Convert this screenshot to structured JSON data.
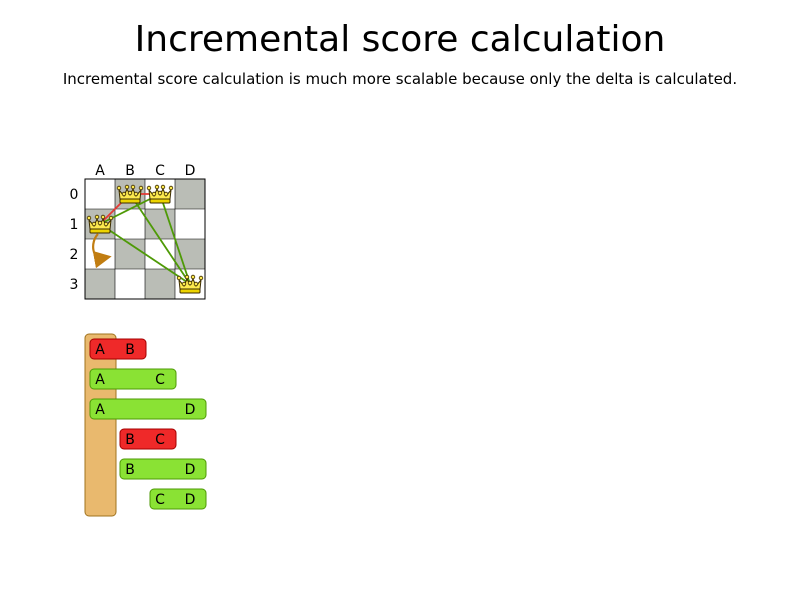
{
  "title": "Incremental score calculation",
  "subtitle": "Incremental score calculation is much more scalable because only the delta is calculated.",
  "board": {
    "columns": [
      "A",
      "B",
      "C",
      "D"
    ],
    "rows": [
      "0",
      "1",
      "2",
      "3"
    ],
    "queens": [
      {
        "column": "A",
        "row": 1
      },
      {
        "column": "B",
        "row": 0
      },
      {
        "column": "C",
        "row": 0
      },
      {
        "column": "D",
        "row": 3
      }
    ],
    "queen_icon": "crown-icon",
    "move_icon": "curved-arrow-icon",
    "move": {
      "column": "A",
      "from_row": 1,
      "to_row": 2
    },
    "conflict_color": "#e53935",
    "ok_color": "#4e9a06",
    "dark_cell_color": "#babdb6"
  },
  "pairs": [
    {
      "a": "A",
      "b": "B",
      "conflict": true
    },
    {
      "a": "A",
      "b": "C",
      "conflict": false
    },
    {
      "a": "A",
      "b": "D",
      "conflict": false
    },
    {
      "a": "B",
      "b": "C",
      "conflict": true
    },
    {
      "a": "B",
      "b": "D",
      "conflict": false
    },
    {
      "a": "C",
      "b": "D",
      "conflict": false
    }
  ],
  "colors": {
    "conflict_fill": "#ef2929",
    "ok_fill": "#8ae234",
    "delta_highlight": "#e9b96e"
  }
}
